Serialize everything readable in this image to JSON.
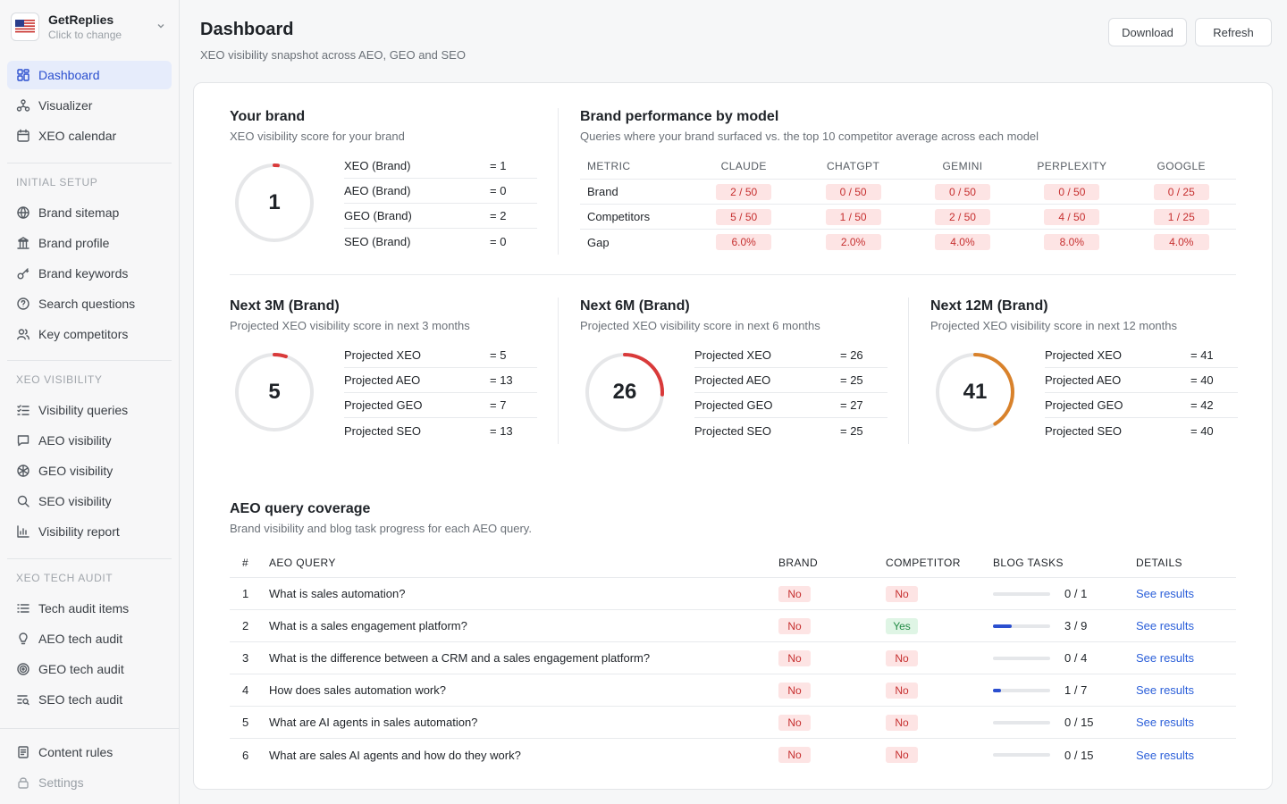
{
  "brand_switch": {
    "name": "GetReplies",
    "sub": "Click to change"
  },
  "nav": {
    "top": [
      {
        "label": "Dashboard",
        "icon": "dashboard-icon",
        "active": true
      },
      {
        "label": "Visualizer",
        "icon": "visualizer-icon"
      },
      {
        "label": "XEO calendar",
        "icon": "calendar-icon"
      }
    ],
    "initial_setup_label": "INITIAL SETUP",
    "initial_setup": [
      {
        "label": "Brand sitemap",
        "icon": "globe-icon"
      },
      {
        "label": "Brand profile",
        "icon": "building-icon"
      },
      {
        "label": "Brand keywords",
        "icon": "key-icon"
      },
      {
        "label": "Search questions",
        "icon": "question-icon"
      },
      {
        "label": "Key competitors",
        "icon": "users-icon"
      }
    ],
    "xeo_visibility_label": "XEO VISIBILITY",
    "xeo_visibility": [
      {
        "label": "Visibility queries",
        "icon": "list-check-icon"
      },
      {
        "label": "AEO visibility",
        "icon": "chat-icon"
      },
      {
        "label": "GEO visibility",
        "icon": "globe-grid-icon"
      },
      {
        "label": "SEO visibility",
        "icon": "search-icon"
      },
      {
        "label": "Visibility report",
        "icon": "bar-chart-icon"
      }
    ],
    "xeo_tech_audit_label": "XEO TECH AUDIT",
    "xeo_tech_audit": [
      {
        "label": "Tech audit items",
        "icon": "list-icon"
      },
      {
        "label": "AEO tech audit",
        "icon": "bulb-icon"
      },
      {
        "label": "GEO tech audit",
        "icon": "target-icon"
      },
      {
        "label": "SEO tech audit",
        "icon": "list-search-icon"
      }
    ],
    "bottom": [
      {
        "label": "Content rules",
        "icon": "rules-icon"
      },
      {
        "label": "Settings",
        "icon": "lock-icon",
        "disabled": true
      }
    ]
  },
  "header": {
    "title": "Dashboard",
    "subtitle": "XEO visibility snapshot across AEO, GEO and SEO",
    "download_label": "Download",
    "refresh_label": "Refresh"
  },
  "your_brand": {
    "title": "Your brand",
    "subtitle": "XEO visibility score for your brand",
    "score": "1",
    "score_value": 1,
    "score_color": "#d93a3a",
    "rows": [
      {
        "key": "XEO (Brand)",
        "val": "= 1"
      },
      {
        "key": "AEO (Brand)",
        "val": "= 0"
      },
      {
        "key": "GEO (Brand)",
        "val": "= 2"
      },
      {
        "key": "SEO (Brand)",
        "val": "= 0"
      }
    ]
  },
  "model_perf": {
    "title": "Brand performance by model",
    "subtitle": "Queries where your brand surfaced vs. the top 10 competitor average across each model",
    "headers": [
      "METRIC",
      "CLAUDE",
      "CHATGPT",
      "GEMINI",
      "PERPLEXITY",
      "GOOGLE"
    ],
    "rows": [
      {
        "metric": "Brand",
        "values": [
          "2 / 50",
          "0 / 50",
          "0 / 50",
          "0 / 50",
          "0 / 25"
        ]
      },
      {
        "metric": "Competitors",
        "values": [
          "5 / 50",
          "1 / 50",
          "2 / 50",
          "4 / 50",
          "1 / 25"
        ]
      },
      {
        "metric": "Gap",
        "values": [
          "6.0%",
          "2.0%",
          "4.0%",
          "8.0%",
          "4.0%"
        ]
      }
    ]
  },
  "projections": [
    {
      "title": "Next 3M (Brand)",
      "subtitle": "Projected XEO visibility score in next 3 months",
      "score": "5",
      "score_value": 5,
      "color": "#d93a3a",
      "rows": [
        {
          "key": "Projected XEO",
          "val": "= 5"
        },
        {
          "key": "Projected AEO",
          "val": "= 13"
        },
        {
          "key": "Projected GEO",
          "val": "= 7"
        },
        {
          "key": "Projected SEO",
          "val": "= 13"
        }
      ]
    },
    {
      "title": "Next 6M (Brand)",
      "subtitle": "Projected XEO visibility score in next 6 months",
      "score": "26",
      "score_value": 26,
      "color": "#d93a3a",
      "rows": [
        {
          "key": "Projected XEO",
          "val": "= 26"
        },
        {
          "key": "Projected AEO",
          "val": "= 25"
        },
        {
          "key": "Projected GEO",
          "val": "= 27"
        },
        {
          "key": "Projected SEO",
          "val": "= 25"
        }
      ]
    },
    {
      "title": "Next 12M (Brand)",
      "subtitle": "Projected XEO visibility score in next 12 months",
      "score": "41",
      "score_value": 41,
      "color": "#d9822b",
      "rows": [
        {
          "key": "Projected XEO",
          "val": "= 41"
        },
        {
          "key": "Projected AEO",
          "val": "= 40"
        },
        {
          "key": "Projected GEO",
          "val": "= 42"
        },
        {
          "key": "Projected SEO",
          "val": "= 40"
        }
      ]
    }
  ],
  "aeo": {
    "title": "AEO query coverage",
    "subtitle": "Brand visibility and blog task progress for each AEO query.",
    "headers": {
      "num": "#",
      "query": "AEO QUERY",
      "brand": "BRAND",
      "competitor": "COMPETITOR",
      "tasks": "BLOG TASKS",
      "details": "DETAILS"
    },
    "rows": [
      {
        "num": "1",
        "query": "What is sales automation?",
        "brand": "No",
        "competitor": "No",
        "done": 0,
        "total": 1,
        "tasks": "0 / 1",
        "details": "See results"
      },
      {
        "num": "2",
        "query": "What is a sales engagement platform?",
        "brand": "No",
        "competitor": "Yes",
        "done": 3,
        "total": 9,
        "tasks": "3 / 9",
        "details": "See results"
      },
      {
        "num": "3",
        "query": "What is the difference between a CRM and a sales engagement platform?",
        "brand": "No",
        "competitor": "No",
        "done": 0,
        "total": 4,
        "tasks": "0 / 4",
        "details": "See results"
      },
      {
        "num": "4",
        "query": "How does sales automation work?",
        "brand": "No",
        "competitor": "No",
        "done": 1,
        "total": 7,
        "tasks": "1 / 7",
        "details": "See results"
      },
      {
        "num": "5",
        "query": "What are AI agents in sales automation?",
        "brand": "No",
        "competitor": "No",
        "done": 0,
        "total": 15,
        "tasks": "0 / 15",
        "details": "See results"
      },
      {
        "num": "6",
        "query": "What are sales AI agents and how do they work?",
        "brand": "No",
        "competitor": "No",
        "done": 0,
        "total": 15,
        "tasks": "0 / 15",
        "details": "See results"
      }
    ]
  }
}
